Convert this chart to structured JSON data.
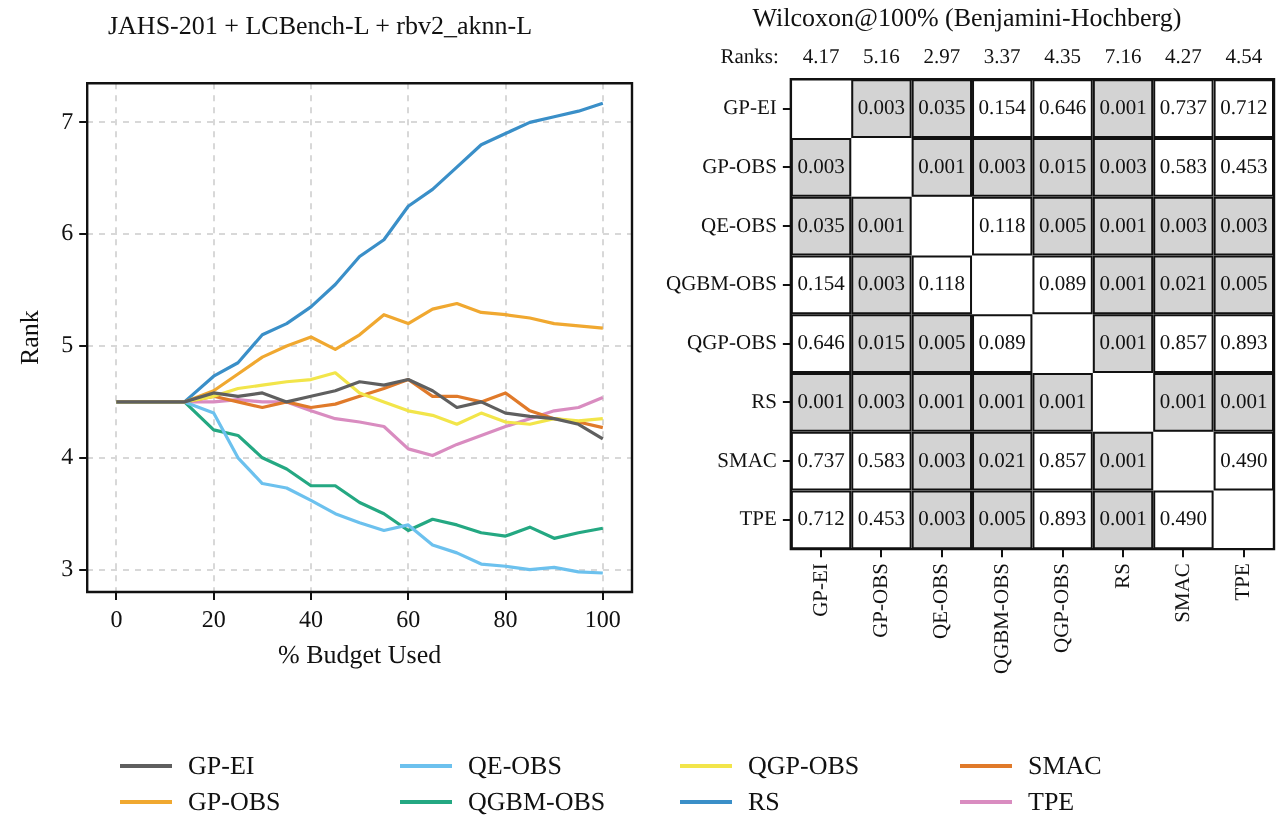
{
  "chart_data": [
    {
      "type": "line",
      "title": "JAHS-201 + LCBench-L + rbv2_aknn-L",
      "xlabel": "% Budget Used",
      "ylabel": "Rank",
      "x": [
        0,
        14,
        20,
        25,
        30,
        35,
        40,
        45,
        50,
        55,
        60,
        65,
        70,
        75,
        80,
        85,
        90,
        95,
        100
      ],
      "xlim": [
        -6,
        106
      ],
      "xticks": [
        0,
        20,
        40,
        60,
        80,
        100
      ],
      "ylim": [
        2.8,
        7.35
      ],
      "yticks": [
        3,
        4,
        5,
        6,
        7
      ],
      "grid": true,
      "legend": "bottom",
      "marker": "none",
      "line_style": "solid",
      "series": [
        {
          "name": "GP-EI",
          "color": "#5f5f5f",
          "values": [
            4.5,
            4.5,
            4.58,
            4.55,
            4.58,
            4.5,
            4.55,
            4.6,
            4.68,
            4.65,
            4.7,
            4.6,
            4.45,
            4.5,
            4.4,
            4.37,
            4.35,
            4.3,
            4.17
          ]
        },
        {
          "name": "GP-OBS",
          "color": "#f0a830",
          "values": [
            4.5,
            4.5,
            4.6,
            4.75,
            4.9,
            5.0,
            5.08,
            4.97,
            5.1,
            5.28,
            5.2,
            5.33,
            5.38,
            5.3,
            5.28,
            5.25,
            5.2,
            5.18,
            5.16
          ]
        },
        {
          "name": "QE-OBS",
          "color": "#6cc1ee",
          "values": [
            4.5,
            4.5,
            4.4,
            4.0,
            3.77,
            3.73,
            3.62,
            3.5,
            3.42,
            3.35,
            3.4,
            3.22,
            3.15,
            3.05,
            3.03,
            3.0,
            3.02,
            2.98,
            2.97
          ]
        },
        {
          "name": "QGBM-OBS",
          "color": "#24a882",
          "values": [
            4.5,
            4.5,
            4.25,
            4.2,
            4.0,
            3.9,
            3.75,
            3.75,
            3.6,
            3.5,
            3.35,
            3.45,
            3.4,
            3.33,
            3.3,
            3.38,
            3.28,
            3.33,
            3.37
          ]
        },
        {
          "name": "QGP-OBS",
          "color": "#f2e54a",
          "values": [
            4.5,
            4.5,
            4.55,
            4.62,
            4.65,
            4.68,
            4.7,
            4.76,
            4.58,
            4.5,
            4.42,
            4.38,
            4.3,
            4.4,
            4.32,
            4.3,
            4.35,
            4.33,
            4.35
          ]
        },
        {
          "name": "RS",
          "color": "#3a8fc8",
          "values": [
            4.5,
            4.5,
            4.73,
            4.85,
            5.1,
            5.2,
            5.35,
            5.55,
            5.8,
            5.95,
            6.25,
            6.4,
            6.6,
            6.8,
            6.9,
            7.0,
            7.05,
            7.1,
            7.17
          ]
        },
        {
          "name": "SMAC",
          "color": "#e07a2a",
          "values": [
            4.5,
            4.5,
            4.55,
            4.5,
            4.45,
            4.5,
            4.45,
            4.48,
            4.55,
            4.62,
            4.7,
            4.55,
            4.55,
            4.5,
            4.58,
            4.42,
            4.35,
            4.32,
            4.27
          ]
        },
        {
          "name": "TPE",
          "color": "#d98cc0",
          "values": [
            4.5,
            4.5,
            4.5,
            4.52,
            4.5,
            4.5,
            4.42,
            4.35,
            4.32,
            4.28,
            4.08,
            4.02,
            4.12,
            4.2,
            4.28,
            4.35,
            4.42,
            4.45,
            4.54
          ]
        }
      ]
    },
    {
      "type": "heatmap",
      "title": "Wilcoxon@100% (Benjamini-Hochberg)",
      "annotations": [
        "Ranks:",
        "4.17",
        "5.16",
        "2.97",
        "3.37",
        "4.35",
        "7.16",
        "4.27",
        "4.54"
      ],
      "categories": [
        "GP-EI",
        "GP-OBS",
        "QE-OBS",
        "QGBM-OBS",
        "QGP-OBS",
        "RS",
        "SMAC",
        "TPE"
      ],
      "y_categories": [
        "GP-EI",
        "GP-OBS",
        "QE-OBS",
        "QGBM-OBS",
        "QGP-OBS",
        "RS",
        "SMAC",
        "TPE"
      ],
      "cells": [
        [
          null,
          0.003,
          0.035,
          0.154,
          0.646,
          0.001,
          0.737,
          0.712
        ],
        [
          0.003,
          null,
          0.001,
          0.003,
          0.015,
          0.003,
          0.583,
          0.453
        ],
        [
          0.035,
          0.001,
          null,
          0.118,
          0.005,
          0.001,
          0.003,
          0.003
        ],
        [
          0.154,
          0.003,
          0.118,
          null,
          0.089,
          0.001,
          0.021,
          0.005
        ],
        [
          0.646,
          0.015,
          0.005,
          0.089,
          null,
          0.001,
          0.857,
          0.893
        ],
        [
          0.001,
          0.003,
          0.001,
          0.001,
          0.001,
          null,
          0.001,
          0.001
        ],
        [
          0.737,
          0.583,
          0.003,
          0.021,
          0.857,
          0.001,
          null,
          0.49
        ],
        [
          0.712,
          0.453,
          0.003,
          0.005,
          0.893,
          0.001,
          0.49,
          null
        ]
      ],
      "cell_labels": [
        [
          null,
          "0.003",
          "0.035",
          "0.154",
          "0.646",
          "0.001",
          "0.737",
          "0.712"
        ],
        [
          "0.003",
          null,
          "0.001",
          "0.003",
          "0.015",
          "0.003",
          "0.583",
          "0.453"
        ],
        [
          "0.035",
          "0.001",
          null,
          "0.118",
          "0.005",
          "0.001",
          "0.003",
          "0.003"
        ],
        [
          "0.154",
          "0.003",
          "0.118",
          null,
          "0.089",
          "0.001",
          "0.021",
          "0.005"
        ],
        [
          "0.646",
          "0.015",
          "0.005",
          "0.089",
          null,
          "0.001",
          "0.857",
          "0.893"
        ],
        [
          "0.001",
          "0.003",
          "0.001",
          "0.001",
          "0.001",
          null,
          "0.001",
          "0.001"
        ],
        [
          "0.737",
          "0.583",
          "0.003",
          "0.021",
          "0.857",
          "0.001",
          null,
          "0.490"
        ],
        [
          "0.712",
          "0.453",
          "0.003",
          "0.005",
          "0.893",
          "0.001",
          "0.490",
          null
        ]
      ],
      "colors": [
        [
          null,
          "#d3d3d3",
          "#d3d3d3",
          "#ffffff",
          "#ffffff",
          "#d3d3d3",
          "#ffffff",
          "#ffffff"
        ],
        [
          "#d3d3d3",
          null,
          "#d3d3d3",
          "#d3d3d3",
          "#d3d3d3",
          "#d3d3d3",
          "#ffffff",
          "#ffffff"
        ],
        [
          "#d3d3d3",
          "#d3d3d3",
          null,
          "#ffffff",
          "#d3d3d3",
          "#d3d3d3",
          "#d3d3d3",
          "#d3d3d3"
        ],
        [
          "#ffffff",
          "#d3d3d3",
          "#ffffff",
          null,
          "#ffffff",
          "#d3d3d3",
          "#d3d3d3",
          "#d3d3d3"
        ],
        [
          "#ffffff",
          "#d3d3d3",
          "#d3d3d3",
          "#ffffff",
          null,
          "#d3d3d3",
          "#ffffff",
          "#ffffff"
        ],
        [
          "#d3d3d3",
          "#d3d3d3",
          "#d3d3d3",
          "#d3d3d3",
          "#d3d3d3",
          null,
          "#d3d3d3",
          "#d3d3d3"
        ],
        [
          "#ffffff",
          "#ffffff",
          "#d3d3d3",
          "#d3d3d3",
          "#ffffff",
          "#d3d3d3",
          null,
          "#ffffff"
        ],
        [
          "#ffffff",
          "#ffffff",
          "#d3d3d3",
          "#d3d3d3",
          "#ffffff",
          "#d3d3d3",
          "#ffffff",
          null
        ]
      ]
    }
  ]
}
